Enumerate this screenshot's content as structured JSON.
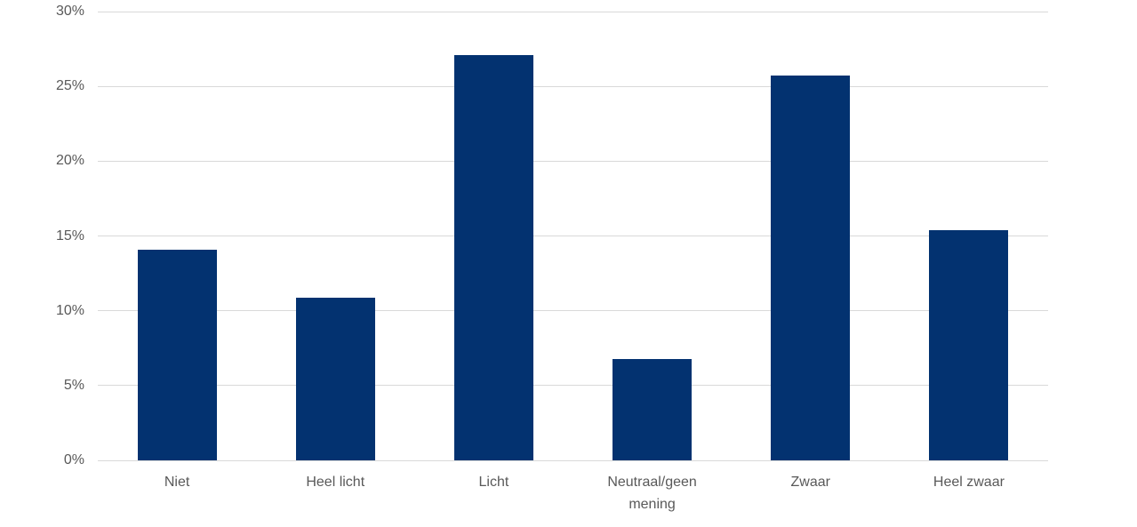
{
  "chart_data": {
    "type": "bar",
    "title": "",
    "xlabel": "",
    "ylabel": "",
    "categories": [
      "Niet",
      "Heel licht",
      "Licht",
      "Neutraal/geen mening",
      "Zwaar",
      "Heel zwaar"
    ],
    "values": [
      14.1,
      10.9,
      27.1,
      6.8,
      25.7,
      15.4
    ],
    "unit": "%",
    "ylim": [
      0,
      30
    ],
    "ytick_step": 5,
    "ytick_labels": [
      "0%",
      "5%",
      "10%",
      "15%",
      "20%",
      "25%",
      "30%"
    ],
    "grid": true,
    "legend": false,
    "colors": {
      "bar": "#033270",
      "gridline": "#d9d9d9",
      "tick_label": "#595959",
      "background": "#ffffff"
    }
  }
}
